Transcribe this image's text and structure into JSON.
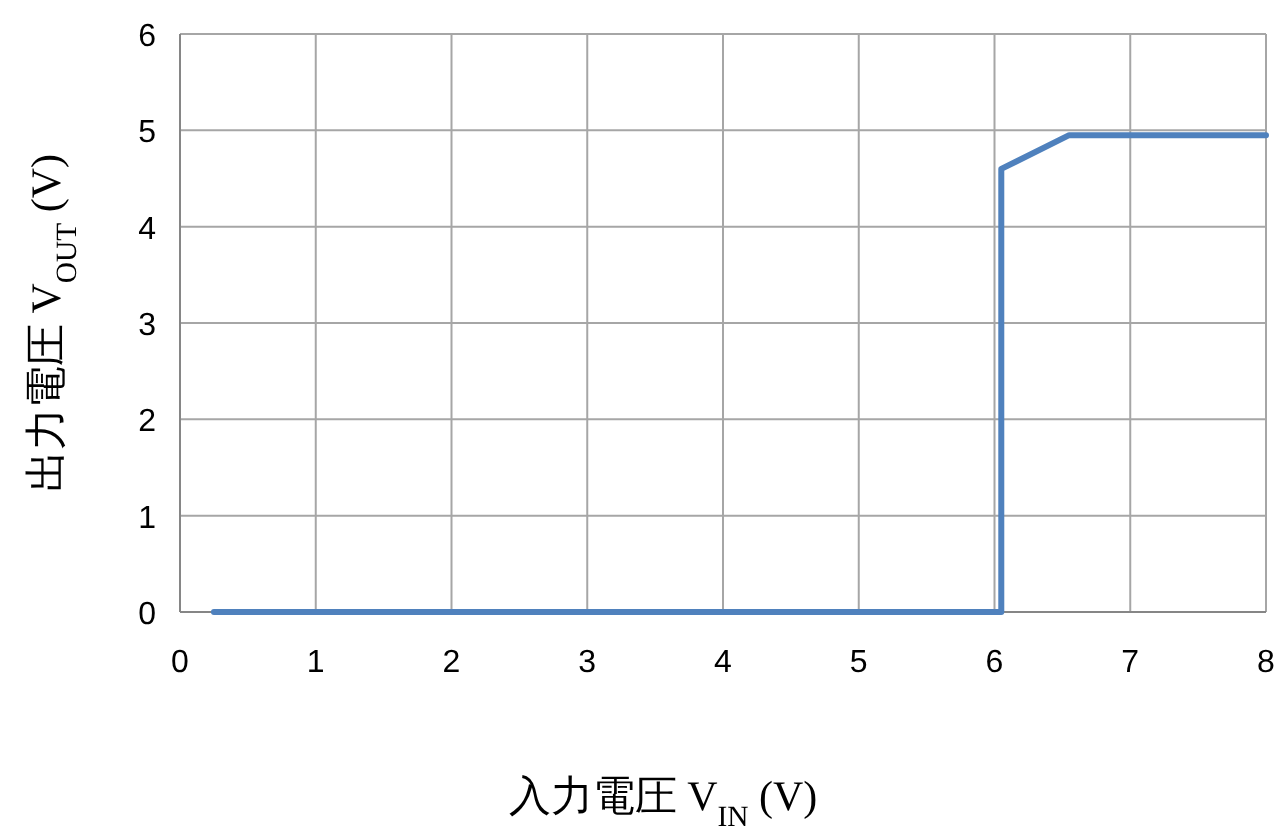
{
  "chart_data": {
    "type": "line",
    "xlabel": "入力電圧 V$_{IN}$ (V)",
    "ylabel": "出力電圧 V$_{OUT}$ (V)",
    "x": [
      0.25,
      6.05,
      6.05,
      6.55,
      8
    ],
    "series": [
      {
        "color": "#4f81bd",
        "values": [
          0,
          0,
          4.6,
          4.95,
          4.95
        ]
      }
    ],
    "xlim": [
      0,
      8
    ],
    "xticks": [
      0,
      1,
      2,
      3,
      4,
      5,
      6,
      7,
      8
    ],
    "ylim": [
      0,
      6
    ],
    "yticks": [
      0,
      1,
      2,
      3,
      4,
      5,
      6
    ],
    "grid": true,
    "marker": "none",
    "line_style": "solid"
  }
}
